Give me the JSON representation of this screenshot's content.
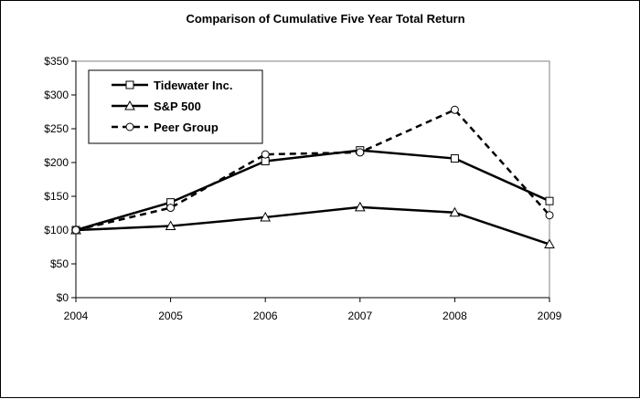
{
  "chart_data": {
    "type": "line",
    "title": "Comparison of Cumulative Five Year Total Return",
    "xlabel": "",
    "ylabel": "",
    "x": [
      "2004",
      "2005",
      "2006",
      "2007",
      "2008",
      "2009"
    ],
    "ylim": [
      0,
      350
    ],
    "yticks": [
      0,
      50,
      100,
      150,
      200,
      250,
      300,
      350
    ],
    "ytick_labels": [
      "$0",
      "$50",
      "$100",
      "$150",
      "$200",
      "$250",
      "$300",
      "$350"
    ],
    "grid": false,
    "legend_position": "top-left",
    "series": [
      {
        "name": "Tidewater Inc.",
        "values": [
          100,
          141,
          202,
          218,
          206,
          143
        ],
        "marker": "square",
        "line": "solid",
        "color": "#000000"
      },
      {
        "name": "S&P 500",
        "values": [
          100,
          106,
          119,
          134,
          126,
          79
        ],
        "marker": "triangle",
        "line": "solid",
        "color": "#000000"
      },
      {
        "name": "Peer Group",
        "values": [
          100,
          133,
          212,
          215,
          278,
          122
        ],
        "marker": "circle",
        "line": "dashed",
        "color": "#000000"
      }
    ]
  }
}
